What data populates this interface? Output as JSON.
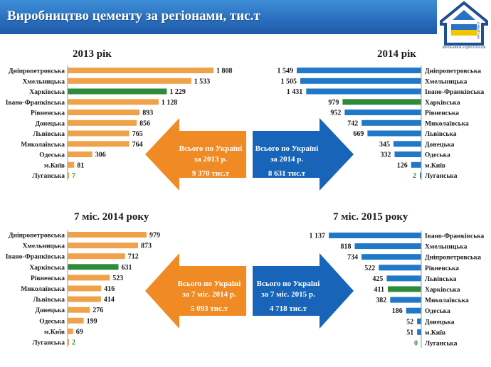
{
  "header": {
    "title": "Виробництво цементу за регіонами, тис.т"
  },
  "logo": {
    "icon": "house-logo-icon",
    "text_upper": "УКРЦЕМЕНТ",
    "text_lower": "ВИРОБНИКІВ БУДМАТЕРІАЛІВ"
  },
  "colors": {
    "orange": "#f0a24a",
    "blue": "#1f78c8",
    "green": "#2e8b3a",
    "arrow_orange": "#f08a24",
    "arrow_blue": "#1764b8",
    "header": "#2b6fbf"
  },
  "chart_data": [
    {
      "type": "bar",
      "title": "2013 рік",
      "categories": [
        "Дніпропетровська",
        "Хмельницька",
        "Харківська",
        "Івано-Франківська",
        "Рівненська",
        "Донецька",
        "Львівська",
        "Миколаївська",
        "Одеська",
        "м.Київ",
        "Луганська"
      ],
      "values": [
        1808,
        1533,
        1229,
        1128,
        893,
        856,
        765,
        764,
        306,
        81,
        7
      ],
      "value_labels": [
        "1 808",
        "1 533",
        "1 229",
        "1 128",
        "893",
        "856",
        "765",
        "764",
        "306",
        "81",
        "7"
      ],
      "highlight": "Харківська"
    },
    {
      "type": "bar",
      "title": "2014 рік",
      "categories": [
        "Дніпропетровська",
        "Хмельницька",
        "Івано-Франківська",
        "Харківська",
        "Рівненська",
        "Миколаївська",
        "Львівська",
        "Донецька",
        "Одеська",
        "м.Київ",
        "Луганська"
      ],
      "values": [
        1549,
        1505,
        1431,
        979,
        952,
        742,
        669,
        345,
        332,
        126,
        2
      ],
      "value_labels": [
        "1 549",
        "1 505",
        "1 431",
        "979",
        "952",
        "742",
        "669",
        "345",
        "332",
        "126",
        "2"
      ],
      "highlight": "Харківська"
    },
    {
      "type": "bar",
      "title": "7 міс. 2014 року",
      "categories": [
        "Дніпропетровська",
        "Хмельницька",
        "Івано-Франківська",
        "Харківська",
        "Рівненська",
        "Миколаївська",
        "Львівська",
        "Донецька",
        "Одеська",
        "м.Київ",
        "Луганська"
      ],
      "values": [
        979,
        873,
        712,
        631,
        523,
        416,
        414,
        276,
        199,
        69,
        2
      ],
      "value_labels": [
        "979",
        "873",
        "712",
        "631",
        "523",
        "416",
        "414",
        "276",
        "199",
        "69",
        "2"
      ],
      "highlight": "Харківська"
    },
    {
      "type": "bar",
      "title": "7 міс. 2015 року",
      "categories": [
        "Івано-Франківська",
        "Хмельницька",
        "Дніпропетровська",
        "Рівненська",
        "Львівська",
        "Харківська",
        "Миколаївська",
        "Одеська",
        "Донецька",
        "м.Київ",
        "Луганська"
      ],
      "values": [
        1137,
        818,
        734,
        522,
        425,
        411,
        382,
        186,
        52,
        51,
        0
      ],
      "value_labels": [
        "1 137",
        "818",
        "734",
        "522",
        "425",
        "411",
        "382",
        "186",
        "52",
        "51",
        "0"
      ],
      "highlight": "Харківська"
    }
  ],
  "totals": {
    "t2013": {
      "line1": "Всього по Україні",
      "line2": "за 2013 р.",
      "value": "9 370 тис.т"
    },
    "t2014": {
      "line1": "Всього по Україні",
      "line2": "за 2014 р.",
      "value": "8 631 тис.т"
    },
    "t7m2014": {
      "line1": "Всього по Україні",
      "line2": "за 7 міс. 2014 р.",
      "value": "5 093 тис.т"
    },
    "t7m2015": {
      "line1": "Всього по Україні",
      "line2": "за 7 міс. 2015 р.",
      "value": "4 718 тис.т"
    }
  }
}
